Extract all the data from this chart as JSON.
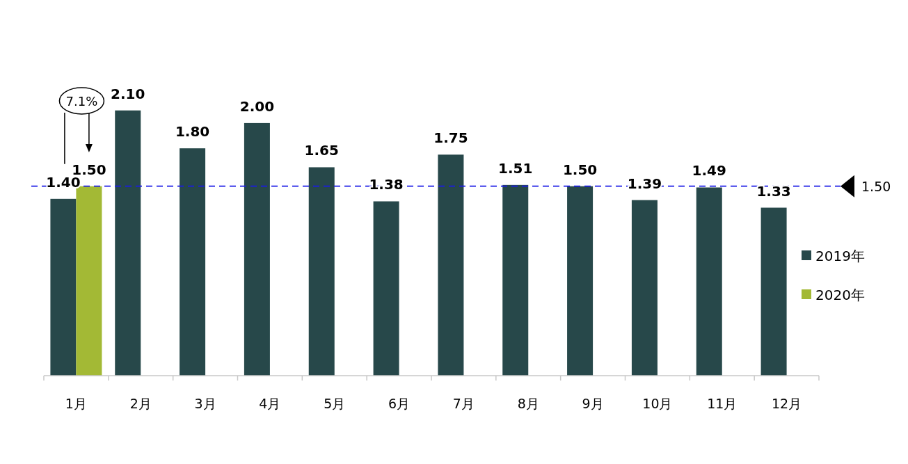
{
  "chart_data": {
    "type": "bar",
    "categories": [
      "1月",
      "2月",
      "3月",
      "4月",
      "5月",
      "6月",
      "7月",
      "8月",
      "9月",
      "10月",
      "11月",
      "12月"
    ],
    "series": [
      {
        "name": "2019年",
        "color": "#27484a",
        "values": [
          1.4,
          2.1,
          1.8,
          2.0,
          1.65,
          1.38,
          1.75,
          1.51,
          1.5,
          1.39,
          1.49,
          1.33
        ],
        "value_labels": [
          "1.40",
          "2.10",
          "1.80",
          "2.00",
          "1.65",
          "1.38",
          "1.75",
          "1.51",
          "1.50",
          "1.39",
          "1.49",
          "1.33"
        ]
      },
      {
        "name": "2020年",
        "color": "#a3b935",
        "values": [
          1.5,
          null,
          null,
          null,
          null,
          null,
          null,
          null,
          null,
          null,
          null,
          null
        ],
        "value_labels": [
          "1.50",
          null,
          null,
          null,
          null,
          null,
          null,
          null,
          null,
          null,
          null,
          null
        ]
      }
    ],
    "ref_lines": [
      {
        "axis": "y",
        "value": 1.5,
        "label": "1.50",
        "color": "#1a1ae6",
        "line_style": "dashed"
      }
    ],
    "annotations": [
      "7.1%"
    ],
    "legend": "right"
  }
}
